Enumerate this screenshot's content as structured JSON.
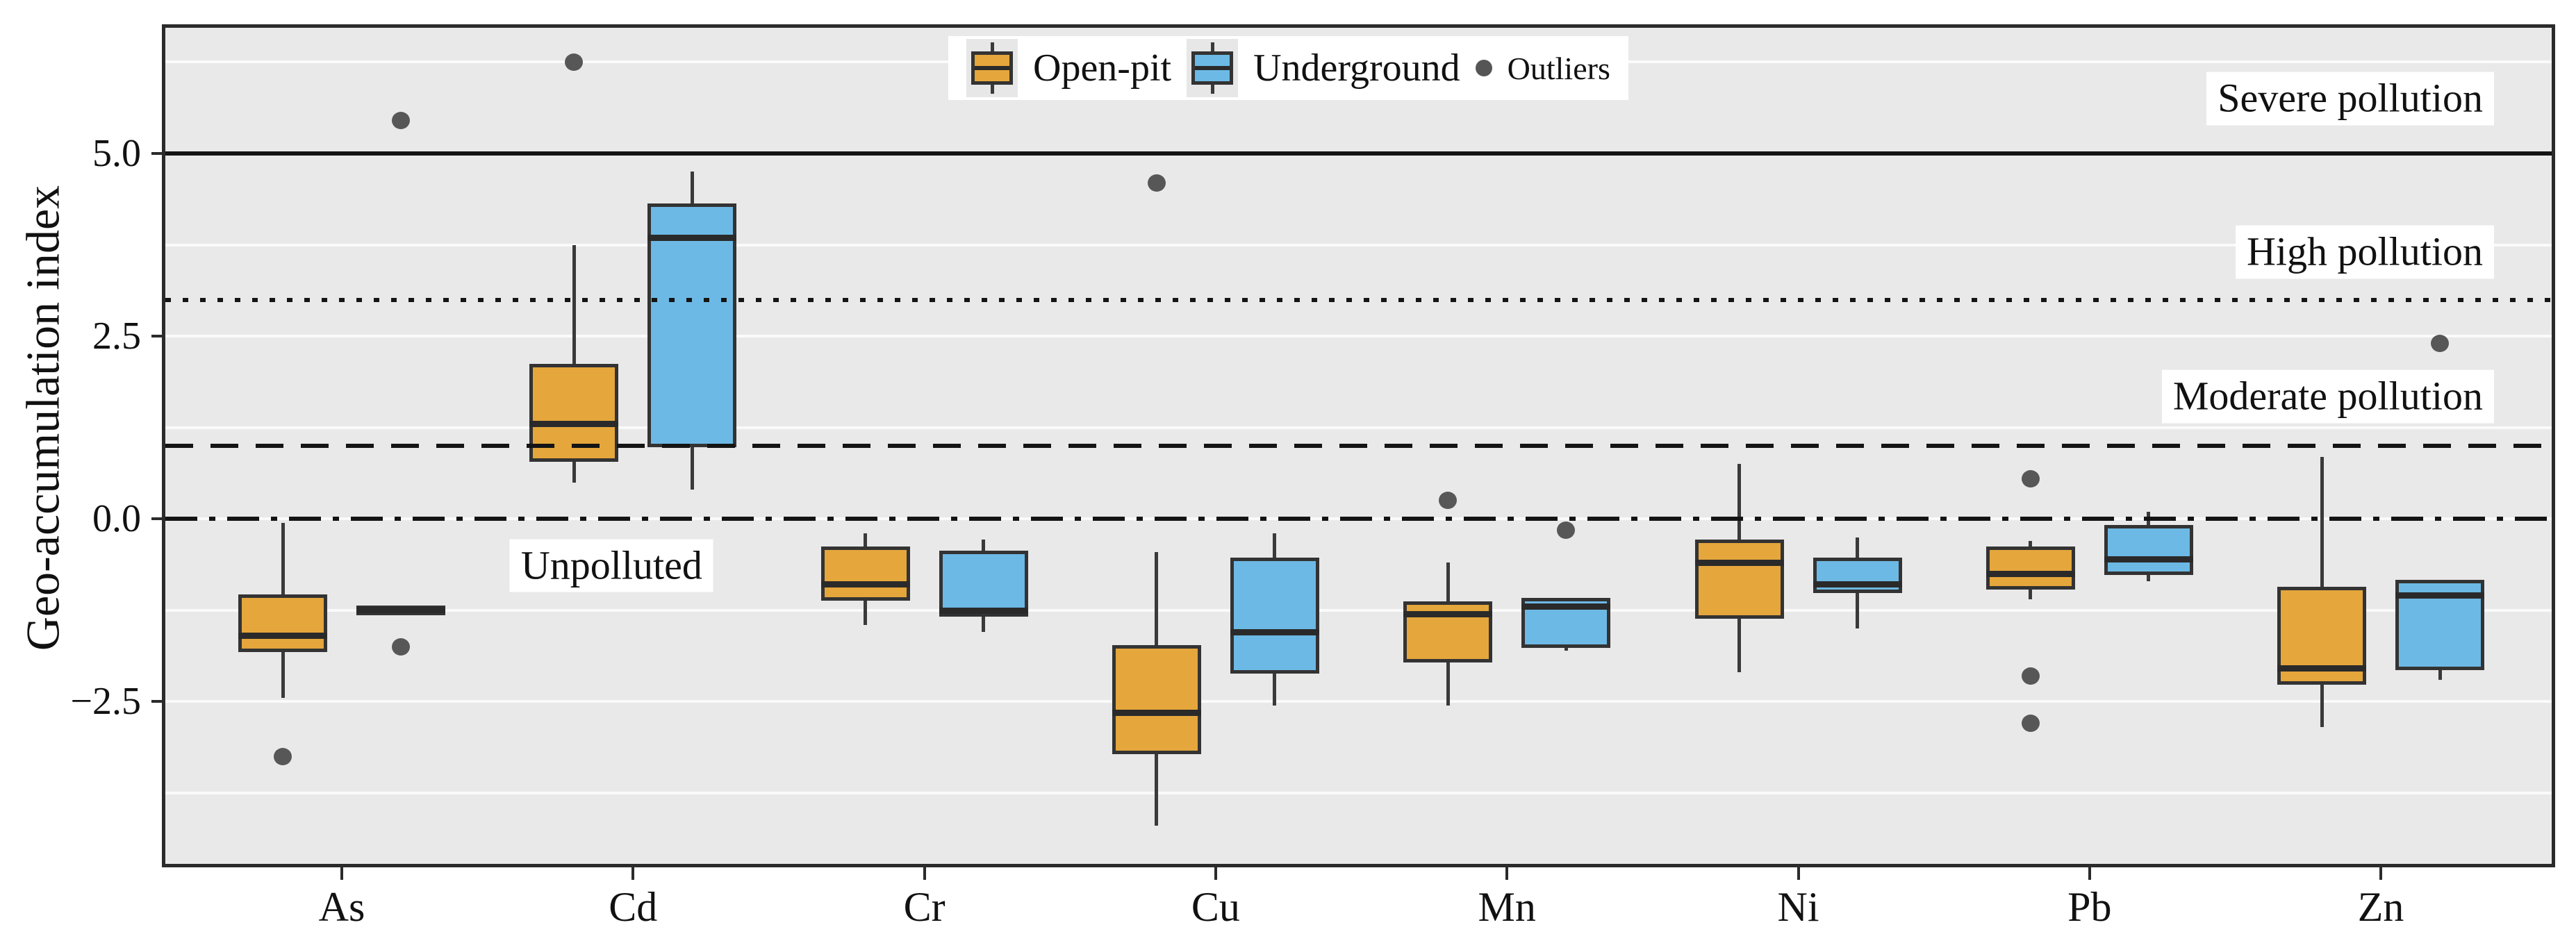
{
  "chart_data": {
    "type": "boxplot",
    "title": "",
    "ylabel": "Geo-accumulation index",
    "xlabel": "",
    "categories": [
      "As",
      "Cd",
      "Cr",
      "Cu",
      "Mn",
      "Ni",
      "Pb",
      "Zn"
    ],
    "ylim": [
      -4.72,
      6.72
    ],
    "grid": true,
    "yticks": {
      "values": [
        5.0,
        2.5,
        0.0,
        -2.5
      ],
      "labels": [
        "5.0",
        "2.5",
        "0.0",
        "−2.5"
      ]
    },
    "gridline_values": [
      6.25,
      5.0,
      3.75,
      2.5,
      1.25,
      0.0,
      -1.25,
      -2.5,
      -3.75
    ],
    "reference_lines": [
      {
        "value": 5.0,
        "style": "solid"
      },
      {
        "value": 3.0,
        "style": "dotted"
      },
      {
        "value": 1.0,
        "style": "dashed"
      },
      {
        "value": 0.0,
        "style": "dashdot"
      }
    ],
    "annotations": [
      {
        "text": "Severe pollution",
        "value": 5.75,
        "align": "right"
      },
      {
        "text": "High pollution",
        "value": 3.65,
        "align": "right"
      },
      {
        "text": "Moderate pollution",
        "value": 1.67,
        "align": "right"
      },
      {
        "text": "Unpolluted",
        "value": -0.64,
        "align": "center",
        "x_frac": 0.187
      }
    ],
    "legend": {
      "position": "top-center",
      "items": [
        {
          "label": "Open-pit",
          "marker": "box",
          "color": "#E5A63C"
        },
        {
          "label": "Underground",
          "marker": "box",
          "color": "#6DB9E5"
        },
        {
          "label": "Outliers",
          "marker": "dot",
          "color": "#555555"
        }
      ]
    },
    "series": [
      {
        "name": "Open-pit",
        "color": "#E5A63C",
        "boxes": [
          {
            "category": "As",
            "whislo": -2.45,
            "q1": -1.8,
            "med": -1.6,
            "q3": -1.05,
            "whishi": -0.05,
            "outliers": [
              -3.25
            ]
          },
          {
            "category": "Cd",
            "whislo": 0.5,
            "q1": 0.8,
            "med": 1.3,
            "q3": 2.1,
            "whishi": 3.75,
            "outliers": [
              6.25
            ]
          },
          {
            "category": "Cr",
            "whislo": -1.45,
            "q1": -1.1,
            "med": -0.9,
            "q3": -0.4,
            "whishi": -0.2,
            "outliers": []
          },
          {
            "category": "Cu",
            "whislo": -4.2,
            "q1": -3.2,
            "med": -2.65,
            "q3": -1.75,
            "whishi": -0.45,
            "outliers": [
              4.6
            ]
          },
          {
            "category": "Mn",
            "whislo": -2.55,
            "q1": -1.95,
            "med": -1.3,
            "q3": -1.15,
            "whishi": -0.6,
            "outliers": [
              0.25
            ]
          },
          {
            "category": "Ni",
            "whislo": -2.1,
            "q1": -1.35,
            "med": -0.6,
            "q3": -0.3,
            "whishi": 0.75,
            "outliers": []
          },
          {
            "category": "Pb",
            "whislo": -1.1,
            "q1": -0.95,
            "med": -0.75,
            "q3": -0.4,
            "whishi": -0.3,
            "outliers": [
              0.55,
              -2.15,
              -2.8
            ]
          },
          {
            "category": "Zn",
            "whislo": -2.85,
            "q1": -2.25,
            "med": -2.05,
            "q3": -0.95,
            "whishi": 0.85,
            "outliers": []
          }
        ]
      },
      {
        "name": "Underground",
        "color": "#6DB9E5",
        "boxes": [
          {
            "category": "As",
            "whislo": -1.31,
            "q1": -1.3,
            "med": -1.25,
            "q3": -1.2,
            "whishi": -1.19,
            "outliers": [
              5.45,
              -1.75
            ]
          },
          {
            "category": "Cd",
            "whislo": 0.4,
            "q1": 1.0,
            "med": 3.85,
            "q3": 4.3,
            "whishi": 4.75,
            "outliers": []
          },
          {
            "category": "Cr",
            "whislo": -1.55,
            "q1": -1.32,
            "med": -1.26,
            "q3": -0.45,
            "whishi": -0.28,
            "outliers": []
          },
          {
            "category": "Cu",
            "whislo": -2.55,
            "q1": -2.1,
            "med": -1.55,
            "q3": -0.55,
            "whishi": -0.2,
            "outliers": []
          },
          {
            "category": "Mn",
            "whislo": -1.8,
            "q1": -1.75,
            "med": -1.2,
            "q3": -1.1,
            "whishi": -1.1,
            "outliers": [
              -0.15
            ]
          },
          {
            "category": "Ni",
            "whislo": -1.5,
            "q1": -1.0,
            "med": -0.9,
            "q3": -0.55,
            "whishi": -0.25,
            "outliers": []
          },
          {
            "category": "Pb",
            "whislo": -0.85,
            "q1": -0.75,
            "med": -0.55,
            "q3": -0.1,
            "whishi": 0.1,
            "outliers": []
          },
          {
            "category": "Zn",
            "whislo": -2.2,
            "q1": -2.05,
            "med": -1.05,
            "q3": -0.85,
            "whishi": -0.85,
            "outliers": [
              2.4
            ]
          }
        ]
      }
    ]
  }
}
